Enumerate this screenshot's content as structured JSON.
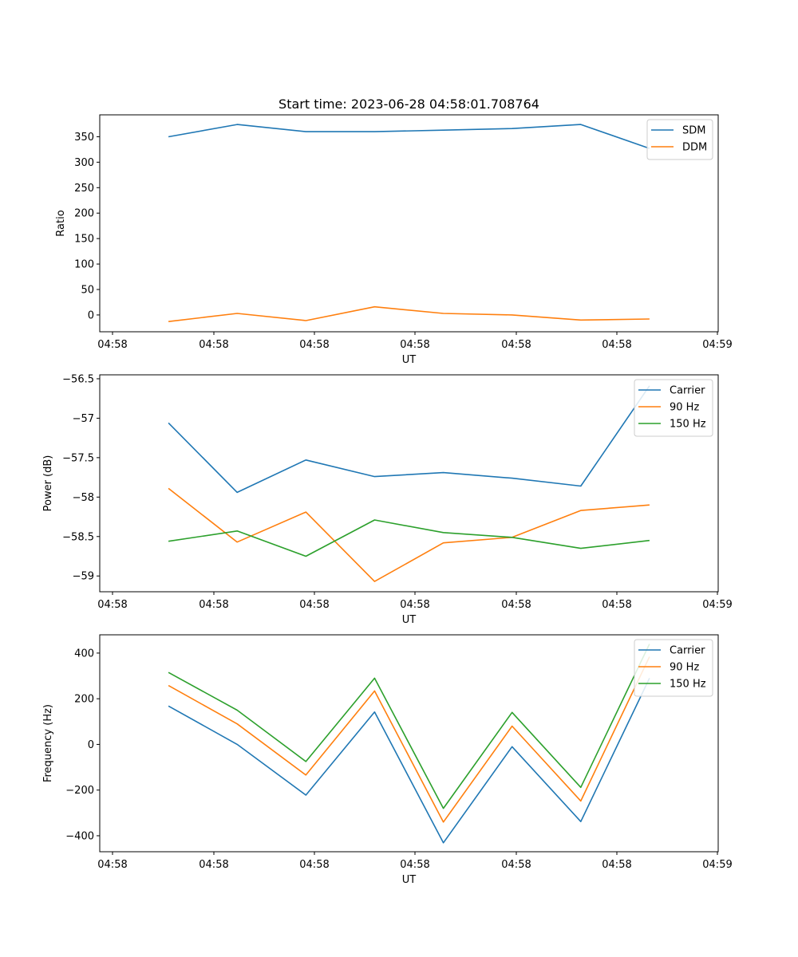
{
  "figure_title": "Start time: 2023-06-28 04:58:01.708764",
  "chart_data": [
    {
      "type": "line",
      "title": "Start time: 2023-06-28 04:58:01.708764",
      "xlabel": "UT",
      "ylabel": "Ratio",
      "x_ticks": [
        "04:58",
        "04:58",
        "04:58",
        "04:58",
        "04:58",
        "04:58",
        "04:58"
      ],
      "x_tick_last": "04:59",
      "xlim": [
        0,
        9
      ],
      "x": [
        1,
        2,
        3,
        4,
        5,
        6,
        7,
        8
      ],
      "ylim": [
        -33,
        393
      ],
      "yticks": [
        0,
        50,
        100,
        150,
        200,
        250,
        300,
        350
      ],
      "grid": false,
      "legend_position": "top-right",
      "series": [
        {
          "name": "SDM",
          "color": "#1f77b4",
          "values": [
            350,
            374,
            360,
            360,
            363,
            366,
            374,
            327
          ]
        },
        {
          "name": "DDM",
          "color": "#ff7f0e",
          "values": [
            -13,
            3,
            -11,
            16,
            3,
            0,
            -10,
            -8
          ]
        }
      ]
    },
    {
      "type": "line",
      "xlabel": "UT",
      "ylabel": "Power (dB)",
      "x_ticks": [
        "04:58",
        "04:58",
        "04:58",
        "04:58",
        "04:58",
        "04:58",
        "04:58"
      ],
      "x_tick_last": "04:59",
      "xlim": [
        0,
        9
      ],
      "x": [
        1,
        2,
        3,
        4,
        5,
        6,
        7,
        8
      ],
      "ylim": [
        -59.2,
        -56.45
      ],
      "yticks": [
        -59.0,
        -58.5,
        -58.0,
        -57.5,
        -57.0,
        -56.5
      ],
      "grid": false,
      "legend_position": "top-right",
      "series": [
        {
          "name": "Carrier",
          "color": "#1f77b4",
          "values": [
            -57.06,
            -57.94,
            -57.53,
            -57.74,
            -57.69,
            -57.76,
            -57.86,
            -56.59
          ]
        },
        {
          "name": "90 Hz",
          "color": "#ff7f0e",
          "values": [
            -57.89,
            -58.57,
            -58.19,
            -59.07,
            -58.58,
            -58.51,
            -58.17,
            -58.1
          ]
        },
        {
          "name": "150 Hz",
          "color": "#2ca02c",
          "values": [
            -58.56,
            -58.43,
            -58.75,
            -58.29,
            -58.45,
            -58.51,
            -58.65,
            -58.55
          ]
        }
      ]
    },
    {
      "type": "line",
      "xlabel": "UT",
      "ylabel": "Frequency (Hz)",
      "x_ticks": [
        "04:58",
        "04:58",
        "04:58",
        "04:58",
        "04:58",
        "04:58",
        "04:58"
      ],
      "x_tick_last": "04:59",
      "xlim": [
        0,
        9
      ],
      "x": [
        1,
        2,
        3,
        4,
        5,
        6,
        7,
        8
      ],
      "ylim": [
        -470,
        480
      ],
      "yticks": [
        -400,
        -200,
        0,
        200,
        400
      ],
      "grid": false,
      "legend_position": "top-right",
      "series": [
        {
          "name": "Carrier",
          "color": "#1f77b4",
          "values": [
            168,
            0,
            -222,
            142,
            -431,
            -10,
            -338,
            290
          ]
        },
        {
          "name": "90 Hz",
          "color": "#ff7f0e",
          "values": [
            258,
            90,
            -134,
            234,
            -340,
            80,
            -248,
            384
          ]
        },
        {
          "name": "150 Hz",
          "color": "#2ca02c",
          "values": [
            315,
            150,
            -75,
            290,
            -280,
            140,
            -188,
            440
          ]
        }
      ]
    }
  ]
}
